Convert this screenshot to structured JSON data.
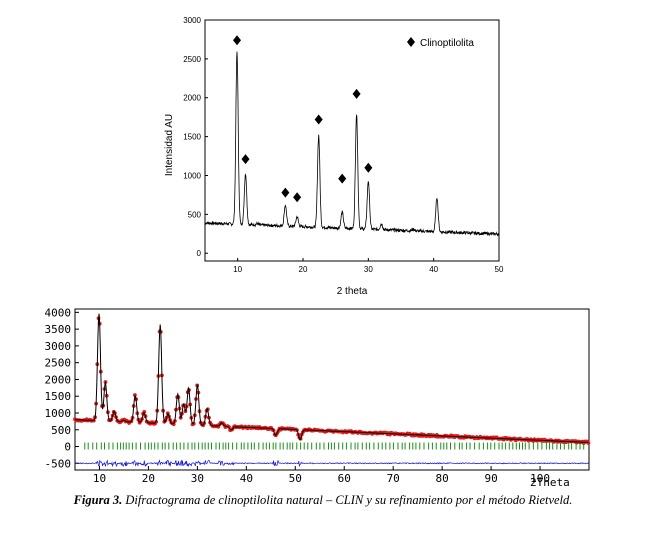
{
  "caption": {
    "figure_label": "Figura 3.",
    "text": "Difractograma de clinoptilolita natural – CLIN y su refinamiento por el método Rietveld."
  },
  "chart_data": [
    {
      "type": "line",
      "xlabel": "2 theta",
      "ylabel": "Intensidad AU",
      "xlim": [
        5,
        50
      ],
      "ylim": [
        -100,
        3000
      ],
      "xticks": [
        10,
        20,
        30,
        40,
        50
      ],
      "yticks": [
        0,
        500,
        1000,
        1500,
        2000,
        2500,
        3000
      ],
      "legend": {
        "marker": "diamond",
        "label": "Clinoptilolita",
        "placement": "top-right"
      },
      "series": [
        {
          "color": "#000000",
          "peaks_2theta": [
            9.9,
            11.2,
            13.0,
            17.3,
            19.1,
            22.4,
            26.0,
            28.2,
            30.0,
            32.0,
            36.9,
            40.5
          ],
          "peak_intensity": [
            2590,
            1030,
            380,
            620,
            470,
            1520,
            530,
            1790,
            930,
            380,
            310,
            720
          ],
          "background": 390
        }
      ],
      "markers": [
        {
          "x": 9.9,
          "y": 2740
        },
        {
          "x": 11.2,
          "y": 1210
        },
        {
          "x": 17.3,
          "y": 780
        },
        {
          "x": 19.1,
          "y": 720
        },
        {
          "x": 22.4,
          "y": 1720
        },
        {
          "x": 26.0,
          "y": 960
        },
        {
          "x": 28.2,
          "y": 2050
        },
        {
          "x": 30.0,
          "y": 1100
        }
      ]
    },
    {
      "type": "line",
      "xlabel": "2Theta",
      "xlim": [
        5,
        110
      ],
      "ylim": [
        -700,
        4100
      ],
      "xticks": [
        10,
        20,
        30,
        40,
        50,
        60,
        70,
        80,
        90,
        100
      ],
      "yticks": [
        -500,
        0,
        500,
        1000,
        1500,
        2000,
        2500,
        3000,
        3500,
        4000
      ],
      "series": [
        {
          "role": "observed",
          "color": "#e21b1b",
          "style": "circles"
        },
        {
          "role": "calculated",
          "color": "#000000",
          "style": "line"
        },
        {
          "role": "bragg_positions",
          "color": "#1a8f1a",
          "style": "ticks",
          "y": 0
        },
        {
          "role": "difference",
          "color": "#1414d4",
          "style": "line",
          "offset": -500
        }
      ],
      "peaks_2theta": [
        9.9,
        11.2,
        13.0,
        15.0,
        17.3,
        19.1,
        22.4,
        24.0,
        26.0,
        27.2,
        28.2,
        30.0,
        32.0,
        35.0,
        36.9,
        46.0,
        51.0
      ],
      "peak_intensity": [
        3900,
        1850,
        1000,
        750,
        1500,
        1000,
        3650,
        1000,
        1600,
        1300,
        1800,
        1900,
        1200,
        800,
        600,
        500,
        400
      ],
      "background_start": 800,
      "background_end": 120
    }
  ]
}
